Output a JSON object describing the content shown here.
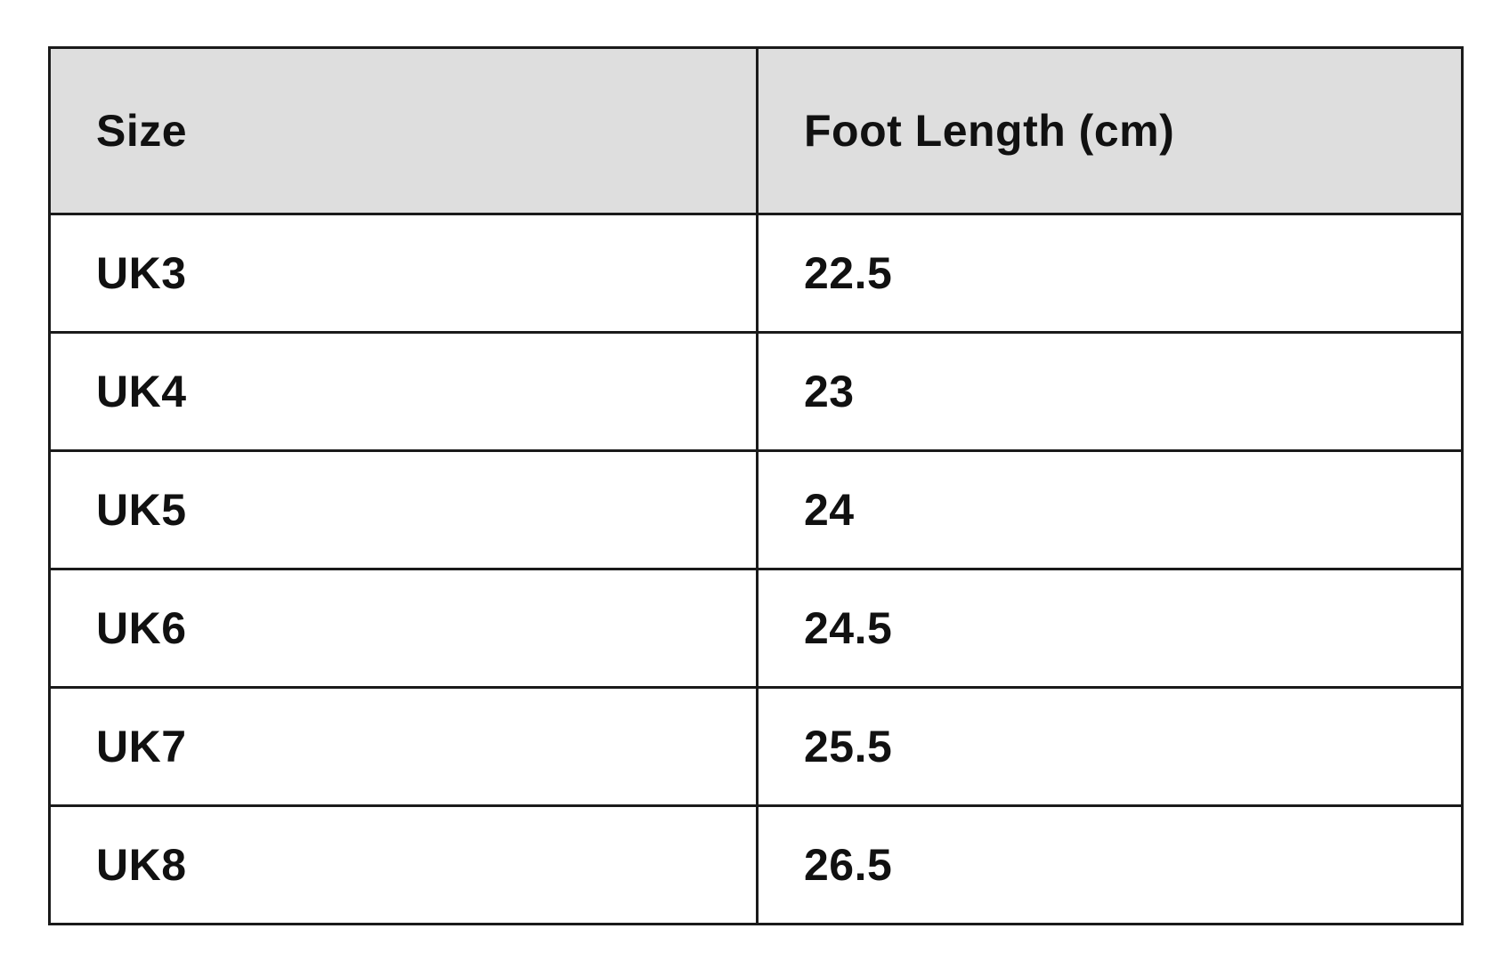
{
  "table": {
    "headers": [
      "Size",
      "Foot Length (cm)"
    ],
    "rows": [
      [
        "UK3",
        "22.5"
      ],
      [
        "UK4",
        "23"
      ],
      [
        "UK5",
        "24"
      ],
      [
        "UK6",
        "24.5"
      ],
      [
        "UK7",
        "25.5"
      ],
      [
        "UK8",
        "26.5"
      ]
    ]
  },
  "colors": {
    "header_bg": "#dedede",
    "border": "#1a1a1a",
    "text": "#111111"
  }
}
